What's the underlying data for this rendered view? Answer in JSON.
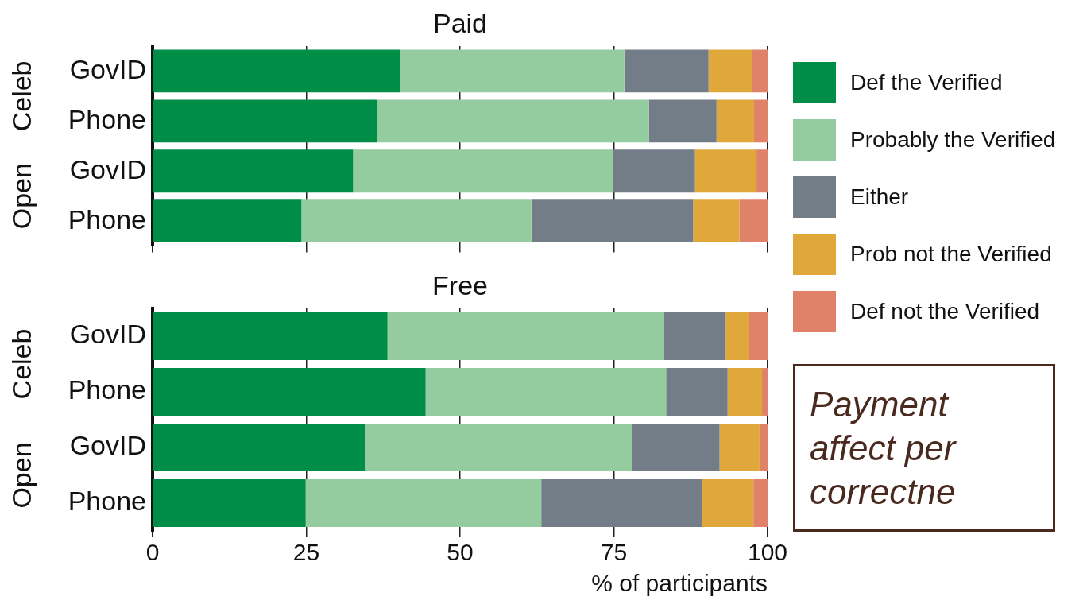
{
  "chart_data": [
    {
      "type": "bar",
      "title": "Paid",
      "orientation": "horizontal",
      "stacked": true,
      "categories": [
        "GovID",
        "Phone",
        "GovID",
        "Phone"
      ],
      "annotations": [
        "Celeb",
        "Open"
      ],
      "series": [
        {
          "name": "Def the Verified",
          "color": "#008d47",
          "values": [
            40.2,
            36.5,
            32.6,
            24.2
          ]
        },
        {
          "name": "Probably the Verified",
          "color": "#94cca0",
          "values": [
            36.5,
            44.2,
            42.3,
            37.4
          ]
        },
        {
          "name": "Either",
          "color": "#737d88",
          "values": [
            13.7,
            11,
            13.3,
            26.3
          ]
        },
        {
          "name": "Prob not the Verified",
          "color": "#e0a83a",
          "values": [
            7.1,
            6.1,
            10,
            7.5
          ]
        },
        {
          "name": "Def not the Verified",
          "color": "#e0826a",
          "values": [
            2.5,
            2.2,
            1.8,
            4.6
          ]
        }
      ],
      "xlim": [
        0,
        100
      ],
      "xticks": [
        0,
        25,
        50,
        75,
        100
      ],
      "grid": "x",
      "tick_labels": "y",
      "legend": "right"
    },
    {
      "type": "bar",
      "title": "Free",
      "orientation": "horizontal",
      "stacked": true,
      "categories": [
        "GovID",
        "Phone",
        "GovID",
        "Phone"
      ],
      "annotations": [
        "Celeb",
        "Open"
      ],
      "xlabel": "% of participants",
      "series": [
        {
          "color": "#008d47",
          "values": [
            38.2,
            44.4,
            34.5,
            24.9
          ]
        },
        {
          "color": "#94cca0",
          "values": [
            45,
            39.1,
            43.5,
            38.3
          ]
        },
        {
          "color": "#737d88",
          "values": [
            10,
            10,
            14.2,
            26.1
          ]
        },
        {
          "color": "#e0a83a",
          "values": [
            3.7,
            5.6,
            6.5,
            8.4
          ]
        },
        {
          "color": "#e0826a",
          "values": [
            3.1,
            0.9,
            1.3,
            2.3
          ]
        }
      ],
      "xlim": [
        0,
        100
      ],
      "xticks": [
        0,
        25,
        50,
        75,
        100
      ],
      "grid": "x"
    },
    {
      "type": "other",
      "annotations": [
        "Payment",
        "affect per",
        "correctne"
      ]
    }
  ]
}
